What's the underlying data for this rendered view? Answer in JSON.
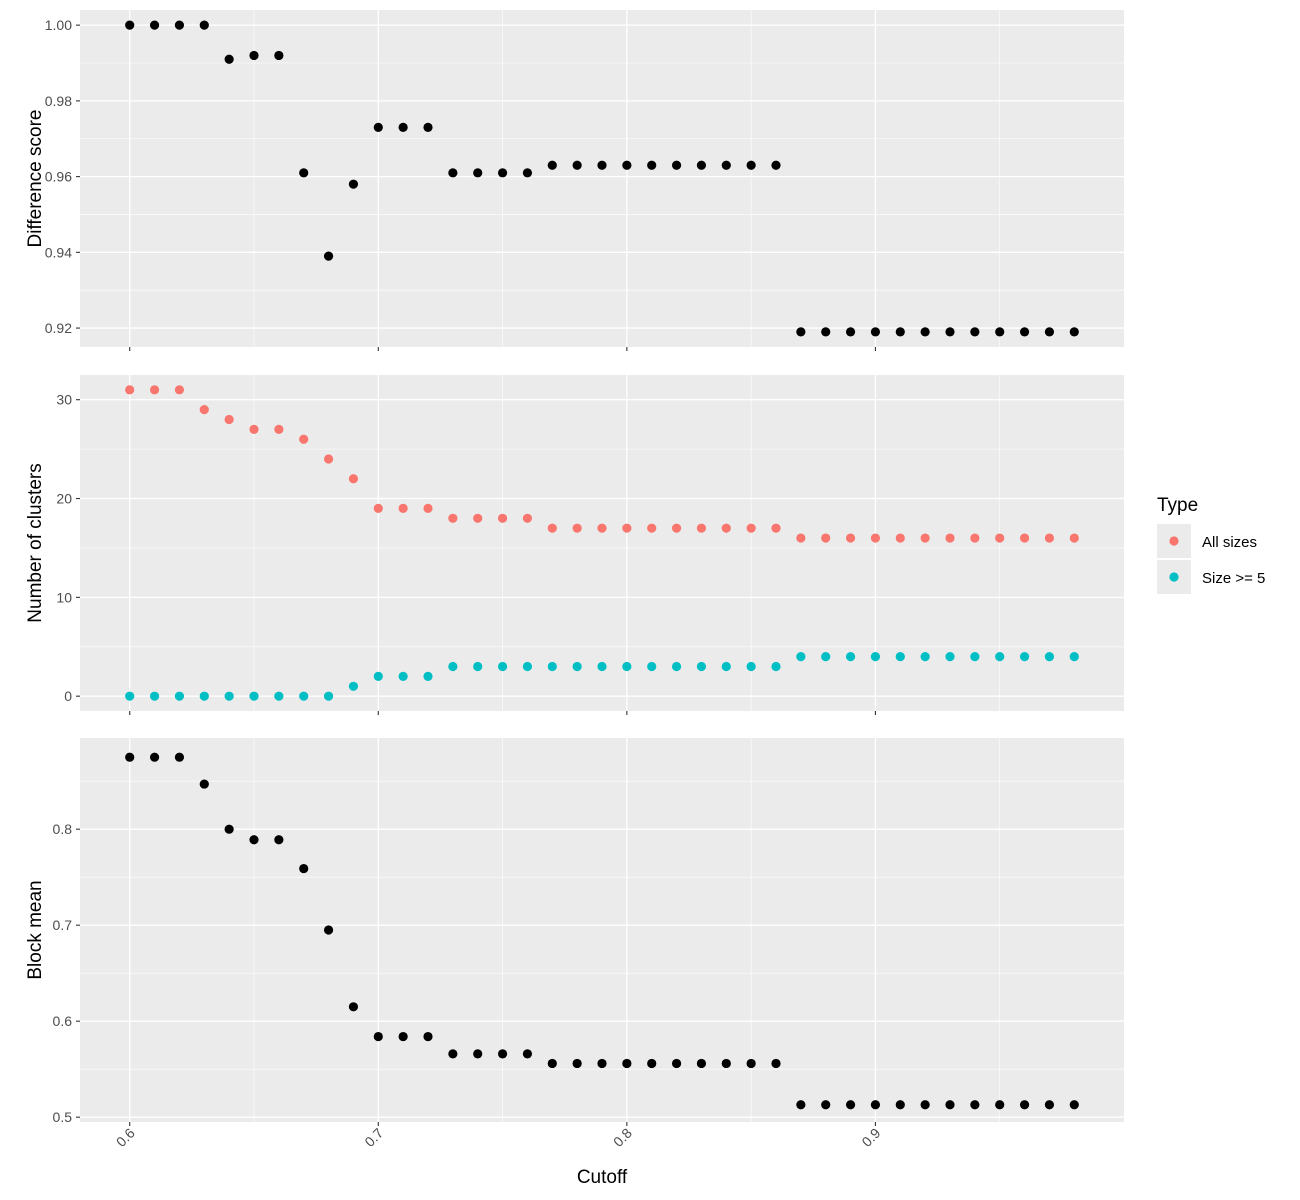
{
  "chart_data": {
    "type": "scatter",
    "x": [
      0.6,
      0.61,
      0.62,
      0.63,
      0.64,
      0.65,
      0.66,
      0.67,
      0.68,
      0.69,
      0.7,
      0.71,
      0.72,
      0.73,
      0.74,
      0.75,
      0.76,
      0.77,
      0.78,
      0.79,
      0.8,
      0.81,
      0.82,
      0.83,
      0.84,
      0.85,
      0.86,
      0.87,
      0.88,
      0.89,
      0.9,
      0.91,
      0.92,
      0.93,
      0.94,
      0.95,
      0.96,
      0.97,
      0.98
    ],
    "xlabel": "Cutoff",
    "xlim": [
      0.58,
      1.0
    ],
    "xticks": [
      "0.6",
      "0.7",
      "0.8",
      "0.9"
    ],
    "grid": true,
    "panels": [
      {
        "ylabel": "Difference score",
        "ylim": [
          0.915,
          1.004
        ],
        "yticks": [
          "0.92",
          "0.94",
          "0.96",
          "0.98",
          "1.00"
        ],
        "series": [
          {
            "color": "#000000",
            "values": [
              1.0,
              1.0,
              1.0,
              1.0,
              0.991,
              0.992,
              0.992,
              0.961,
              0.939,
              0.958,
              0.973,
              0.973,
              0.973,
              0.961,
              0.961,
              0.961,
              0.961,
              0.963,
              0.963,
              0.963,
              0.963,
              0.963,
              0.963,
              0.963,
              0.963,
              0.963,
              0.963,
              0.919,
              0.919,
              0.919,
              0.919,
              0.919,
              0.919,
              0.919,
              0.919,
              0.919,
              0.919,
              0.919,
              0.919
            ]
          }
        ]
      },
      {
        "ylabel": "Number of clusters",
        "ylim": [
          -1.5,
          32.5
        ],
        "yticks": [
          "0",
          "10",
          "20",
          "30"
        ],
        "series": [
          {
            "name": "All sizes",
            "color": "#F8766D",
            "values": [
              31,
              31,
              31,
              29,
              28,
              27,
              27,
              26,
              24,
              22,
              19,
              19,
              19,
              18,
              18,
              18,
              18,
              17,
              17,
              17,
              17,
              17,
              17,
              17,
              17,
              17,
              17,
              16,
              16,
              16,
              16,
              16,
              16,
              16,
              16,
              16,
              16,
              16,
              16
            ]
          },
          {
            "name": "Size >= 5",
            "color": "#00BFC4",
            "values": [
              0,
              0,
              0,
              0,
              0,
              0,
              0,
              0,
              0,
              1,
              2,
              2,
              2,
              3,
              3,
              3,
              3,
              3,
              3,
              3,
              3,
              3,
              3,
              3,
              3,
              3,
              3,
              4,
              4,
              4,
              4,
              4,
              4,
              4,
              4,
              4,
              4,
              4,
              4
            ]
          }
        ]
      },
      {
        "ylabel": "Block mean",
        "ylim": [
          0.495,
          0.895
        ],
        "yticks": [
          "0.5",
          "0.6",
          "0.7",
          "0.8"
        ],
        "series": [
          {
            "color": "#000000",
            "values": [
              0.875,
              0.875,
              0.875,
              0.847,
              0.8,
              0.789,
              0.789,
              0.759,
              0.695,
              0.615,
              0.584,
              0.584,
              0.584,
              0.566,
              0.566,
              0.566,
              0.566,
              0.556,
              0.556,
              0.556,
              0.556,
              0.556,
              0.556,
              0.556,
              0.556,
              0.556,
              0.556,
              0.513,
              0.513,
              0.513,
              0.513,
              0.513,
              0.513,
              0.513,
              0.513,
              0.513,
              0.513,
              0.513,
              0.513
            ]
          }
        ]
      }
    ],
    "legend": {
      "title": "Type",
      "placement": "right",
      "entries": [
        {
          "label": "All sizes",
          "color": "#F8766D"
        },
        {
          "label": "Size >= 5",
          "color": "#00BFC4"
        }
      ]
    }
  }
}
